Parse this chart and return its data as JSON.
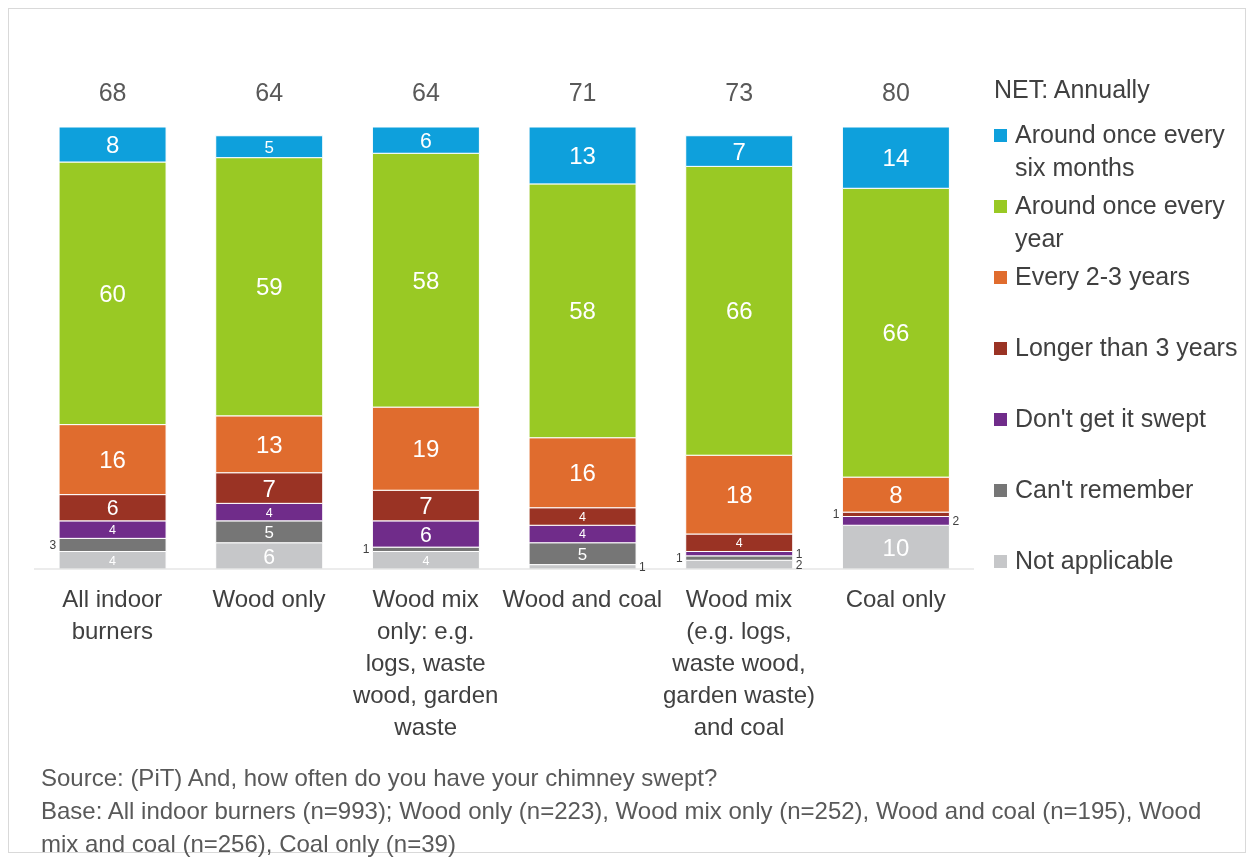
{
  "chart_data": {
    "type": "bar",
    "stacked": true,
    "legend": "right",
    "legend_title": "NET: Annually",
    "data_labels": true,
    "categories": [
      "All indoor burners",
      "Wood only",
      "Wood mix only: e.g. logs, waste wood, garden waste",
      "Wood and coal",
      "Wood mix (e.g. logs, waste wood, garden waste) and coal",
      "Coal only"
    ],
    "series": [
      {
        "name": "Not applicable",
        "color": "#c6c7c9",
        "values": [
          4,
          6,
          4,
          1,
          2,
          10
        ]
      },
      {
        "name": "Can't remember",
        "color": "#767676",
        "values": [
          3,
          5,
          1,
          5,
          1,
          0
        ],
        "value_labels": [
          "3",
          "5",
          "1",
          "5",
          "1",
          null
        ]
      },
      {
        "name": "Don't get it swept",
        "color": "#702c8a",
        "values": [
          4,
          4,
          6,
          4,
          1,
          2
        ]
      },
      {
        "name": "Longer than 3 years",
        "color": "#9a3324",
        "values": [
          6,
          7,
          7,
          4,
          4,
          1
        ]
      },
      {
        "name": "Every 2-3 years",
        "color": "#e06c2e",
        "values": [
          16,
          13,
          19,
          16,
          18,
          8
        ]
      },
      {
        "name": "Around once every year",
        "color": "#99c924",
        "values": [
          60,
          59,
          58,
          58,
          66,
          66
        ]
      },
      {
        "name": "Around once every six months",
        "color": "#0ea0dc",
        "values": [
          8,
          5,
          6,
          13,
          7,
          14
        ]
      }
    ],
    "annotations": [
      "68",
      "64",
      "64",
      "71",
      "73",
      "80",
      "Source: (PiT) And, how often do you have your chimney swept?",
      "Base: All indoor burners (n=993); Wood only (n=223), Wood mix only (n=252), Wood and coal (n=195), Wood mix and coal (n=256), Coal only (n=39)"
    ]
  }
}
